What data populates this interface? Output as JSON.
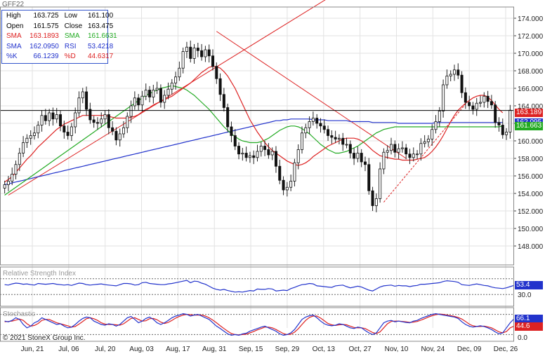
{
  "symbol": "GFF22",
  "info": {
    "rows": [
      {
        "k1": "High",
        "v1": "163.725",
        "k2": "Low",
        "v2": "161.100",
        "c1": "#000000",
        "c2": "#000000"
      },
      {
        "k1": "Open",
        "v1": "161.575",
        "k2": "Close",
        "v2": "163.475",
        "c1": "#000000",
        "c2": "#000000"
      },
      {
        "k1": "SMA",
        "v1": "163.1893",
        "k2": "SMA",
        "v2": "161.6631",
        "c1": "#dd2222",
        "c2": "#22aa22"
      },
      {
        "k1": "SMA",
        "v1": "162.0950",
        "k2": "RSI",
        "v2": "53.4218",
        "c1": "#2233cc",
        "c2": "#2233cc"
      },
      {
        "k1": "%K",
        "v1": "66.1239",
        "k2": "%D",
        "v2": "44.6317",
        "c1": "#2233cc",
        "c2": "#dd2222"
      }
    ]
  },
  "copyright": "© 2021 StoneX Group Inc.",
  "indicator_titles": {
    "rsi": "Relative Strength Index",
    "stoch": "Stochastic"
  },
  "price_tags": [
    {
      "label": "163.189",
      "value": 163.189,
      "color": "#dd2222"
    },
    {
      "label": "162.095",
      "value": 162.095,
      "color": "#2233cc"
    },
    {
      "label": "161.663",
      "value": 161.663,
      "color": "#22aa22"
    }
  ],
  "rsi_tags": [
    {
      "label": "53.4",
      "value": 53.4,
      "color": "#2233cc"
    }
  ],
  "stoch_tags": [
    {
      "label": "66.1",
      "value": 66.1,
      "color": "#2233cc"
    },
    {
      "label": "44.6",
      "value": 44.6,
      "color": "#dd2222"
    }
  ],
  "chart_data": {
    "type": "candlestick",
    "title": "GFF22",
    "x_ticks": [
      "Jun, 21",
      "Jul, 06",
      "Jul, 20",
      "Aug, 03",
      "Aug, 17",
      "Aug, 31",
      "Sep, 15",
      "Sep, 29",
      "Oct, 13",
      "Oct, 27",
      "Nov, 10",
      "Nov, 24",
      "Dec, 09",
      "Dec, 26"
    ],
    "y_ticks": [
      174,
      172,
      170,
      168,
      166,
      164,
      162,
      160,
      158,
      156,
      154,
      152,
      150,
      148
    ],
    "ylim": [
      146.5,
      175.5
    ],
    "rsi_levels": [
      70,
      30
    ],
    "rsi_labels": [
      "30.0"
    ],
    "stoch_levels": [
      80,
      20
    ],
    "stoch_labels": [
      "0.0"
    ],
    "horizontal_line": 163.475,
    "closes": [
      155.0,
      155.4,
      156.2,
      157.3,
      158.6,
      159.8,
      160.3,
      160.6,
      160.9,
      161.8,
      162.9,
      162.3,
      163.2,
      162.5,
      163.0,
      161.7,
      161.0,
      160.6,
      161.6,
      163.2,
      164.9,
      165.6,
      163.6,
      162.4,
      162.1,
      162.0,
      162.5,
      163.0,
      161.5,
      161.1,
      160.1,
      160.8,
      161.5,
      162.8,
      164.0,
      164.9,
      164.1,
      165.1,
      165.8,
      165.0,
      165.8,
      166.0,
      164.4,
      165.2,
      165.9,
      166.6,
      167.3,
      168.3,
      170.2,
      170.7,
      169.4,
      170.6,
      170.3,
      169.6,
      170.4,
      169.7,
      168.5,
      167.1,
      165.3,
      163.8,
      161.6,
      160.6,
      159.4,
      158.5,
      158.6,
      158.1,
      158.3,
      158.1,
      158.8,
      159.4,
      159.0,
      158.4,
      158.8,
      157.1,
      155.5,
      154.4,
      154.7,
      155.4,
      157.5,
      159.0,
      160.9,
      161.5,
      162.2,
      162.6,
      162.0,
      161.7,
      161.3,
      160.6,
      160.4,
      160.2,
      160.3,
      159.6,
      159.6,
      158.6,
      158.0,
      158.6,
      157.6,
      157.3,
      154.3,
      152.6,
      153.4,
      156.8,
      158.7,
      158.9,
      159.6,
      158.7,
      159.1,
      159.2,
      158.5,
      158.1,
      158.5,
      158.5,
      159.7,
      159.9,
      160.2,
      161.3,
      162.2,
      163.4,
      166.4,
      167.4,
      167.6,
      168.1,
      167.5,
      165.5,
      164.4,
      164.0,
      163.6,
      164.3,
      164.4,
      165.1,
      164.5,
      164.1,
      162.1,
      161.8,
      160.7,
      161.0,
      163.5
    ],
    "sma_short": [
      155.3,
      155.6,
      155.9,
      156.4,
      156.9,
      157.4,
      157.9,
      158.3,
      158.8,
      159.3,
      159.7,
      160.1,
      160.5,
      160.9,
      161.3,
      161.6,
      161.9,
      162.1,
      162.3,
      162.5,
      162.7,
      162.9,
      162.9,
      162.9,
      162.9,
      162.9,
      162.9,
      162.9,
      162.8,
      162.7,
      162.6,
      162.6,
      162.6,
      162.6,
      162.7,
      162.8,
      163.0,
      163.3,
      163.6,
      163.8,
      164.1,
      164.3,
      164.5,
      164.7,
      164.9,
      165.1,
      165.4,
      165.7,
      166.0,
      166.3,
      166.6,
      167.0,
      167.4,
      167.8,
      168.1,
      168.4,
      168.5,
      168.5,
      168.3,
      167.9,
      167.4,
      166.7,
      166.0,
      165.1,
      164.2,
      163.3,
      162.4,
      161.7,
      161.0,
      160.4,
      159.8,
      159.3,
      158.9,
      158.6,
      158.3,
      158.0,
      157.7,
      157.5,
      157.3,
      157.2,
      157.3,
      157.5,
      157.8,
      158.2,
      158.5,
      158.8,
      159.1,
      159.4,
      159.6,
      159.8,
      160.0,
      160.2,
      160.3,
      160.3,
      160.3,
      160.2,
      160.0,
      159.7,
      159.3,
      158.9,
      158.6,
      158.3,
      158.2,
      158.1,
      158.0,
      157.9,
      157.9,
      157.8,
      157.8,
      157.8,
      157.8,
      157.9,
      158.0,
      158.1,
      158.4,
      158.8,
      159.3,
      159.9,
      160.6,
      161.4,
      162.2,
      162.9,
      163.5,
      163.9,
      164.3,
      164.6,
      164.9,
      165.1,
      165.2,
      165.2,
      165.0,
      164.6,
      164.1,
      163.6,
      163.2
    ],
    "sma_mid": [
      153.8,
      154.1,
      154.4,
      154.7,
      155.0,
      155.3,
      155.6,
      155.9,
      156.2,
      156.5,
      156.8,
      157.1,
      157.4,
      157.7,
      158.0,
      158.3,
      158.6,
      158.9,
      159.2,
      159.5,
      159.8,
      160.1,
      160.4,
      160.7,
      161.0,
      161.3,
      161.6,
      161.9,
      162.2,
      162.5,
      162.8,
      163.1,
      163.4,
      163.7,
      164.0,
      164.3,
      164.6,
      164.9,
      165.2,
      165.4,
      165.6,
      165.8,
      166.0,
      166.1,
      166.2,
      166.3,
      166.2,
      166.1,
      166.0,
      165.8,
      165.5,
      165.2,
      164.8,
      164.4,
      164.0,
      163.6,
      163.1,
      162.6,
      162.1,
      161.6,
      161.2,
      160.8,
      160.5,
      160.2,
      160.0,
      159.9,
      159.8,
      159.8,
      159.8,
      159.9,
      160.1,
      160.3,
      160.6,
      160.9,
      161.2,
      161.4,
      161.6,
      161.7,
      161.7,
      161.6,
      161.4,
      161.1,
      160.8,
      160.4,
      160.0,
      159.6,
      159.3,
      159.0,
      158.8,
      158.6,
      158.6,
      158.7,
      158.8,
      159.0,
      159.2,
      159.4,
      159.7,
      160.0,
      160.3,
      160.6,
      160.9,
      161.1,
      161.3,
      161.4,
      161.5,
      161.6,
      161.6,
      161.6,
      161.6,
      161.6,
      161.6,
      161.6,
      161.6,
      161.6,
      161.6,
      161.6,
      161.6,
      161.6,
      161.6,
      161.6,
      161.6,
      161.6,
      161.6,
      161.6,
      161.6,
      161.6,
      161.6,
      161.6,
      161.6,
      161.6,
      161.6,
      161.6,
      161.6,
      161.6,
      161.7
    ],
    "sma_long": [
      155.0,
      155.1,
      155.2,
      155.3,
      155.4,
      155.5,
      155.6,
      155.7,
      155.8,
      155.9,
      156.0,
      156.1,
      156.2,
      156.3,
      156.4,
      156.5,
      156.6,
      156.7,
      156.8,
      156.9,
      157.0,
      157.1,
      157.2,
      157.3,
      157.4,
      157.5,
      157.6,
      157.7,
      157.8,
      157.9,
      158.0,
      158.1,
      158.2,
      158.3,
      158.4,
      158.5,
      158.6,
      158.7,
      158.8,
      158.9,
      159.0,
      159.1,
      159.2,
      159.3,
      159.4,
      159.5,
      159.6,
      159.7,
      159.8,
      159.9,
      160.0,
      160.1,
      160.2,
      160.3,
      160.4,
      160.5,
      160.6,
      160.7,
      160.8,
      160.9,
      161.0,
      161.1,
      161.2,
      161.3,
      161.4,
      161.5,
      161.6,
      161.7,
      161.8,
      161.9,
      162.0,
      162.1,
      162.2,
      162.3,
      162.3,
      162.4,
      162.4,
      162.5,
      162.5,
      162.5,
      162.5,
      162.5,
      162.5,
      162.4,
      162.4,
      162.4,
      162.4,
      162.3,
      162.3,
      162.3,
      162.3,
      162.3,
      162.3,
      162.2,
      162.2,
      162.2,
      162.2,
      162.2,
      162.2,
      162.1,
      162.1,
      162.1,
      162.1,
      162.1,
      162.1,
      162.1,
      162.0,
      162.0,
      162.0,
      162.0,
      162.0,
      162.0,
      162.0,
      162.0,
      162.0,
      162.0,
      162.1,
      162.1,
      162.1,
      162.1,
      162.1,
      162.1,
      162.1,
      162.1,
      162.1,
      162.1,
      162.1,
      162.1,
      162.1,
      162.1,
      162.1,
      162.1,
      162.1,
      162.1,
      162.1
    ],
    "rsi": [
      55,
      54,
      57,
      59,
      58,
      56,
      57,
      55,
      54,
      58,
      57,
      56,
      57,
      58,
      56,
      55,
      54,
      55,
      53,
      56,
      59,
      58,
      55,
      54,
      55,
      56,
      57,
      55,
      54,
      53,
      52,
      55,
      58,
      58,
      57,
      54,
      55,
      60,
      61,
      58,
      57,
      56,
      55,
      55,
      57,
      58,
      60,
      62,
      64,
      66,
      60,
      64,
      63,
      59,
      56,
      51,
      46,
      43,
      41,
      43,
      40,
      38,
      36,
      37,
      36,
      38,
      40,
      39,
      44,
      43,
      43,
      45,
      44,
      39,
      40,
      41,
      40,
      45,
      48,
      52,
      55,
      56,
      58,
      57,
      52,
      51,
      50,
      49,
      48,
      52,
      53,
      54,
      50,
      47,
      49,
      51,
      49,
      45,
      41,
      39,
      44,
      49,
      52,
      53,
      54,
      51,
      53,
      52,
      52,
      50,
      52,
      53,
      56,
      56,
      57,
      58,
      59,
      60,
      63,
      65,
      64,
      63,
      61,
      55,
      54,
      53,
      55,
      57,
      55,
      53,
      52,
      49,
      47,
      46,
      45,
      47,
      50,
      53
    ],
    "stoch_k": [
      60,
      58,
      62,
      70,
      65,
      50,
      40,
      45,
      55,
      60,
      70,
      65,
      60,
      55,
      50,
      52,
      45,
      40,
      42,
      50,
      60,
      68,
      72,
      70,
      60,
      55,
      50,
      48,
      52,
      50,
      45,
      50,
      60,
      70,
      74,
      65,
      55,
      60,
      68,
      72,
      65,
      55,
      50,
      55,
      62,
      70,
      75,
      78,
      82,
      80,
      75,
      78,
      80,
      75,
      70,
      65,
      55,
      45,
      38,
      30,
      22,
      18,
      20,
      18,
      22,
      24,
      30,
      34,
      38,
      42,
      45,
      40,
      35,
      30,
      22,
      18,
      20,
      25,
      35,
      50,
      65,
      72,
      76,
      78,
      70,
      60,
      52,
      48,
      46,
      48,
      52,
      50,
      45,
      40,
      38,
      42,
      40,
      32,
      25,
      20,
      25,
      40,
      55,
      60,
      62,
      58,
      60,
      58,
      56,
      55,
      60,
      62,
      68,
      72,
      76,
      80,
      82,
      80,
      78,
      76,
      74,
      72,
      68,
      58,
      50,
      45,
      42,
      44,
      46,
      44,
      40,
      35,
      28,
      22,
      25,
      40,
      55,
      66.1
    ],
    "stoch_d": [
      58,
      59,
      60,
      63,
      66,
      62,
      52,
      45,
      47,
      53,
      62,
      65,
      65,
      60,
      55,
      52,
      49,
      46,
      42,
      44,
      51,
      59,
      67,
      70,
      67,
      62,
      55,
      51,
      50,
      50,
      49,
      48,
      52,
      60,
      68,
      70,
      65,
      60,
      61,
      67,
      68,
      64,
      57,
      53,
      56,
      62,
      69,
      74,
      78,
      80,
      79,
      78,
      78,
      78,
      75,
      70,
      63,
      55,
      46,
      38,
      30,
      23,
      20,
      19,
      20,
      21,
      25,
      29,
      34,
      38,
      42,
      42,
      40,
      35,
      29,
      23,
      20,
      21,
      27,
      37,
      50,
      62,
      71,
      75,
      75,
      69,
      61,
      53,
      49,
      47,
      49,
      50,
      49,
      45,
      41,
      40,
      40,
      38,
      32,
      26,
      23,
      28,
      40,
      52,
      59,
      60,
      60,
      59,
      58,
      56,
      57,
      59,
      63,
      67,
      72,
      76,
      79,
      81,
      80,
      78,
      76,
      74,
      71,
      66,
      59,
      51,
      46,
      44,
      44,
      45,
      43,
      40,
      34,
      28,
      25,
      29,
      40,
      44.6
    ]
  }
}
